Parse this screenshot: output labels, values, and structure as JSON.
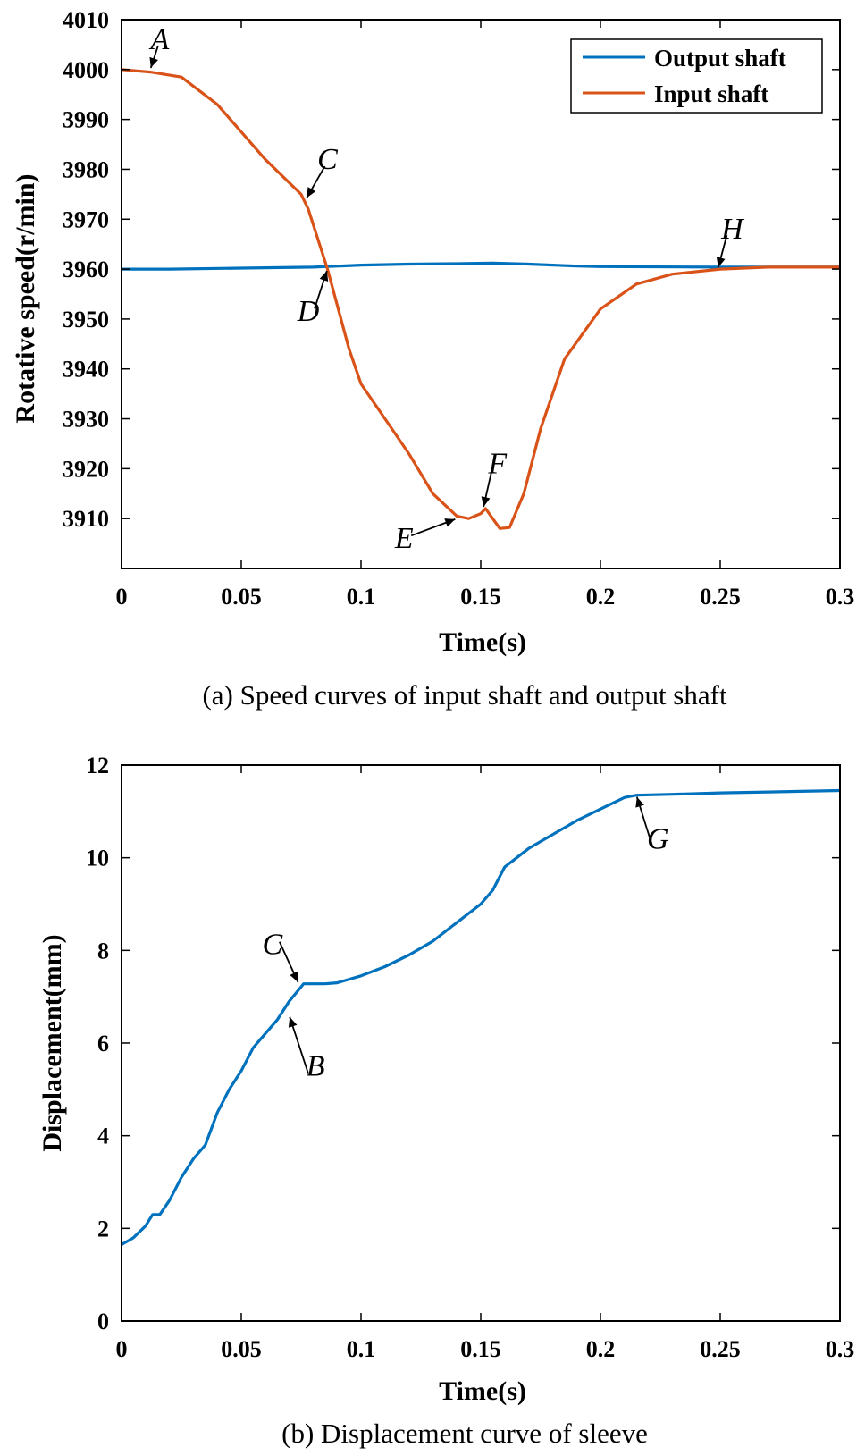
{
  "chart_data": [
    {
      "type": "line",
      "caption": "(a) Speed curves of input shaft and output shaft",
      "xlabel": "Time(s)",
      "ylabel": "Rotative speed(r/min)",
      "xlim": [
        0,
        0.3
      ],
      "ylim": [
        3900,
        4010
      ],
      "xticks": [
        "0",
        "0.05",
        "0.1",
        "0.15",
        "0.2",
        "0.25",
        "0.3"
      ],
      "yticks": [
        "3910",
        "3920",
        "3930",
        "3940",
        "3950",
        "3960",
        "3970",
        "3980",
        "3990",
        "4000",
        "4010"
      ],
      "grid": false,
      "legend_position": "top-right",
      "series": [
        {
          "name": "Output shaft",
          "color": "#0072BD",
          "x": [
            0,
            0.02,
            0.05,
            0.08,
            0.1,
            0.12,
            0.14,
            0.155,
            0.17,
            0.19,
            0.2,
            0.25,
            0.3
          ],
          "y": [
            3960,
            3960,
            3960.2,
            3960.4,
            3960.8,
            3961.0,
            3961.1,
            3961.2,
            3961.0,
            3960.6,
            3960.5,
            3960.4,
            3960.4
          ]
        },
        {
          "name": "Input shaft",
          "color": "#D95319",
          "x": [
            0,
            0.012,
            0.025,
            0.04,
            0.06,
            0.075,
            0.078,
            0.086,
            0.095,
            0.1,
            0.11,
            0.12,
            0.13,
            0.14,
            0.145,
            0.15,
            0.152,
            0.155,
            0.158,
            0.162,
            0.168,
            0.175,
            0.185,
            0.2,
            0.215,
            0.23,
            0.25,
            0.27,
            0.3
          ],
          "y": [
            4000,
            3999.5,
            3998.5,
            3993,
            3982,
            3975,
            3972,
            3960,
            3944,
            3937,
            3930,
            3923,
            3915,
            3910.5,
            3910,
            3911,
            3912,
            3910,
            3908,
            3908.2,
            3915,
            3928,
            3942,
            3952,
            3957,
            3959,
            3960,
            3960.4,
            3960.4
          ]
        }
      ],
      "annotations": [
        {
          "label": "A",
          "x": 0.012,
          "y": 4000
        },
        {
          "label": "C",
          "x": 0.077,
          "y": 3974
        },
        {
          "label": "D",
          "x": 0.086,
          "y": 3960
        },
        {
          "label": "E",
          "x": 0.14,
          "y": 3910
        },
        {
          "label": "F",
          "x": 0.151,
          "y": 3912
        },
        {
          "label": "H",
          "x": 0.249,
          "y": 3960
        }
      ]
    },
    {
      "type": "line",
      "caption": "(b) Displacement curve of sleeve",
      "xlabel": "Time(s)",
      "ylabel": "Displacement(mm)",
      "xlim": [
        0,
        0.3
      ],
      "ylim": [
        0,
        12
      ],
      "xticks": [
        "0",
        "0.05",
        "0.1",
        "0.15",
        "0.2",
        "0.25",
        "0.3"
      ],
      "yticks": [
        "0",
        "2",
        "4",
        "6",
        "8",
        "10",
        "12"
      ],
      "grid": false,
      "series": [
        {
          "color": "#0072BD",
          "x": [
            0,
            0.005,
            0.01,
            0.013,
            0.016,
            0.02,
            0.025,
            0.03,
            0.035,
            0.04,
            0.045,
            0.05,
            0.055,
            0.06,
            0.065,
            0.07,
            0.074,
            0.076,
            0.08,
            0.085,
            0.09,
            0.1,
            0.11,
            0.12,
            0.13,
            0.14,
            0.15,
            0.155,
            0.16,
            0.165,
            0.17,
            0.18,
            0.19,
            0.2,
            0.21,
            0.215,
            0.23,
            0.25,
            0.27,
            0.3
          ],
          "y": [
            1.65,
            1.8,
            2.05,
            2.3,
            2.3,
            2.6,
            3.1,
            3.5,
            3.8,
            4.5,
            5.0,
            5.4,
            5.9,
            6.2,
            6.5,
            6.9,
            7.15,
            7.28,
            7.28,
            7.28,
            7.3,
            7.45,
            7.65,
            7.9,
            8.2,
            8.6,
            9.0,
            9.3,
            9.8,
            10.0,
            10.2,
            10.5,
            10.8,
            11.05,
            11.3,
            11.35,
            11.37,
            11.4,
            11.42,
            11.45
          ]
        }
      ],
      "annotations": [
        {
          "label": "C",
          "x": 0.074,
          "y": 7.28
        },
        {
          "label": "B",
          "x": 0.07,
          "y": 6.6
        },
        {
          "label": "G",
          "x": 0.215,
          "y": 11.35
        }
      ]
    }
  ]
}
